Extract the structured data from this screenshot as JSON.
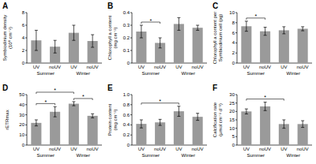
{
  "chart_data": [
    {
      "type": "bar",
      "title": "A",
      "y_label": [
        "Symbiodinium density",
        "(10⁶ cm⁻²)"
      ],
      "categories": [
        "UV",
        "noUV",
        "UV",
        "noUV"
      ],
      "groups": [
        "Summer",
        "Winter"
      ],
      "values": [
        3.6,
        2.6,
        4.8,
        3.5
      ],
      "errors": [
        1.6,
        1.0,
        1.2,
        1.0
      ],
      "ylim": [
        0,
        8
      ],
      "yticks": [
        0,
        2,
        4,
        6,
        8
      ],
      "color": "#9a9a9a",
      "significance": []
    },
    {
      "type": "bar",
      "title": "B",
      "y_label": [
        "Chlorophyll a content",
        "(mg cm⁻²)"
      ],
      "categories": [
        "UV",
        "noUV",
        "UV",
        "noUV"
      ],
      "groups": [
        "Summer",
        "Winter"
      ],
      "values": [
        0.25,
        0.16,
        0.31,
        0.28
      ],
      "errors": [
        0.05,
        0.04,
        0.05,
        0.02
      ],
      "ylim": [
        0,
        0.4
      ],
      "yticks": [
        0,
        0.1,
        0.2,
        0.3,
        0.4
      ],
      "color": "#9a9a9a",
      "significance": [
        {
          "pair": [
            0,
            1
          ],
          "label": "*"
        }
      ]
    },
    {
      "type": "bar",
      "title": "C",
      "y_label": [
        "Chlorophyll a content per",
        "Symbiodinium cell (pg)"
      ],
      "categories": [
        "UV",
        "noUV",
        "UV",
        "noUV"
      ],
      "groups": [
        "Summer",
        "Winter"
      ],
      "values": [
        7.3,
        6.3,
        6.5,
        6.8
      ],
      "errors": [
        1.0,
        0.8,
        0.7,
        0.4
      ],
      "ylim": [
        0,
        10
      ],
      "yticks": [
        0,
        2,
        4,
        6,
        8,
        10
      ],
      "color": "#9a9a9a",
      "significance": [
        {
          "pair": [
            0,
            1
          ],
          "label": "*"
        }
      ]
    },
    {
      "type": "bar",
      "title": "D",
      "y_label": [
        "rETRmax"
      ],
      "categories": [
        "UV",
        "noUV",
        "UV",
        "noUV"
      ],
      "groups": [
        "Summer",
        "Winter"
      ],
      "values": [
        22,
        33,
        41,
        29
      ],
      "errors": [
        3,
        5,
        2,
        2
      ],
      "ylim": [
        0,
        50
      ],
      "yticks": [
        0,
        10,
        20,
        30,
        40,
        50
      ],
      "color": "#9a9a9a",
      "significance": [
        {
          "pair": [
            0,
            1
          ],
          "label": "*"
        },
        {
          "pair": [
            2,
            3
          ],
          "label": "*"
        },
        {
          "pair": [
            0,
            2
          ],
          "label": "*"
        }
      ]
    },
    {
      "type": "bar",
      "title": "E",
      "y_label": [
        "Protein content",
        "(mg cm⁻²)"
      ],
      "categories": [
        "UV",
        "noUV",
        "UV",
        "noUV"
      ],
      "groups": [
        "Summer",
        "Winter"
      ],
      "values": [
        0.42,
        0.45,
        0.67,
        0.56
      ],
      "errors": [
        0.08,
        0.06,
        0.1,
        0.07
      ],
      "ylim": [
        0,
        1
      ],
      "yticks": [
        0,
        0.2,
        0.4,
        0.6,
        0.8,
        {
          "value": 1,
          "label": "1.0"
        }
      ],
      "color": "#9a9a9a",
      "significance": [
        {
          "pair": [
            0,
            2
          ],
          "label": "*"
        }
      ]
    },
    {
      "type": "bar",
      "title": "F",
      "y_label": [
        "Calcification rate",
        "(μmol cm⁻² d⁻¹)"
      ],
      "categories": [
        "UV",
        "noUV",
        "UV",
        "noUV"
      ],
      "groups": [
        "Summer",
        "Winter"
      ],
      "values": [
        20,
        23,
        12.5,
        12.5
      ],
      "errors": [
        1.5,
        2.5,
        2.5,
        2
      ],
      "ylim": [
        0,
        30
      ],
      "yticks": [
        0,
        5,
        10,
        15,
        20,
        25,
        30
      ],
      "color": "#9a9a9a",
      "significance": [
        {
          "pair": [
            0,
            2
          ],
          "label": "*"
        }
      ]
    }
  ]
}
